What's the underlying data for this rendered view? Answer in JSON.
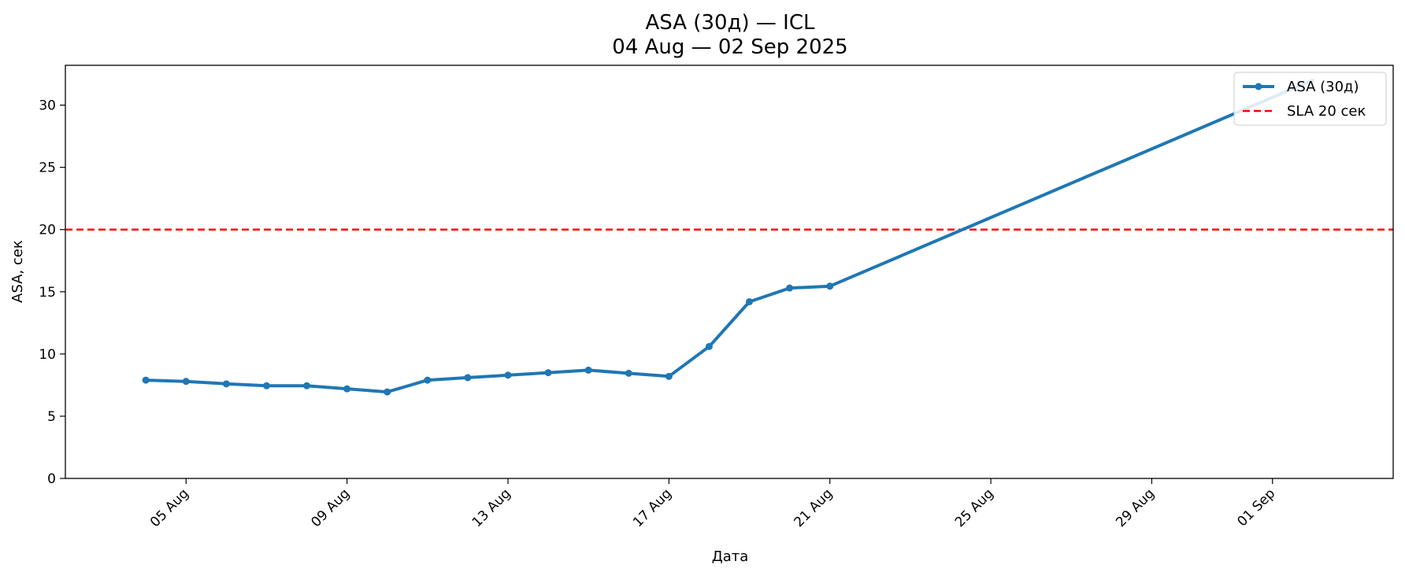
{
  "chart_data": {
    "type": "line",
    "title": "ASA (30д) — ICL",
    "subtitle": "04 Aug — 02 Sep 2025",
    "xlabel": "Дата",
    "ylabel": "ASA, сек",
    "x_type": "date",
    "xlim": [
      "2025-08-02",
      "2025-09-04"
    ],
    "ylim": [
      0,
      33.2
    ],
    "x_ticks": [
      {
        "date": "2025-08-05",
        "label": "05 Aug"
      },
      {
        "date": "2025-08-09",
        "label": "09 Aug"
      },
      {
        "date": "2025-08-13",
        "label": "13 Aug"
      },
      {
        "date": "2025-08-17",
        "label": "17 Aug"
      },
      {
        "date": "2025-08-21",
        "label": "21 Aug"
      },
      {
        "date": "2025-08-25",
        "label": "25 Aug"
      },
      {
        "date": "2025-08-29",
        "label": "29 Aug"
      },
      {
        "date": "2025-09-01",
        "label": "01 Sep"
      }
    ],
    "y_ticks": [
      0,
      5,
      10,
      15,
      20,
      25,
      30
    ],
    "grid": false,
    "legend_position": "top-right",
    "series": [
      {
        "name": "ASA (30д)",
        "color": "#1f77b4",
        "marker": "circle",
        "points": [
          {
            "x": "2025-08-04",
            "y": 7.9
          },
          {
            "x": "2025-08-05",
            "y": 7.8
          },
          {
            "x": "2025-08-06",
            "y": 7.6
          },
          {
            "x": "2025-08-07",
            "y": 7.45
          },
          {
            "x": "2025-08-08",
            "y": 7.45
          },
          {
            "x": "2025-08-09",
            "y": 7.2
          },
          {
            "x": "2025-08-10",
            "y": 6.95
          },
          {
            "x": "2025-08-11",
            "y": 7.9
          },
          {
            "x": "2025-08-12",
            "y": 8.1
          },
          {
            "x": "2025-08-13",
            "y": 8.3
          },
          {
            "x": "2025-08-14",
            "y": 8.5
          },
          {
            "x": "2025-08-15",
            "y": 8.7
          },
          {
            "x": "2025-08-16",
            "y": 8.45
          },
          {
            "x": "2025-08-17",
            "y": 8.2
          },
          {
            "x": "2025-08-18",
            "y": 10.6
          },
          {
            "x": "2025-08-19",
            "y": 14.2
          },
          {
            "x": "2025-08-20",
            "y": 15.3
          },
          {
            "x": "2025-08-21",
            "y": 15.45
          },
          {
            "x": "2025-09-02",
            "y": 32.0
          }
        ]
      },
      {
        "name": "SLA 20 сек",
        "color": "#ff0000",
        "style": "dashed",
        "constant_y": 20
      }
    ]
  }
}
